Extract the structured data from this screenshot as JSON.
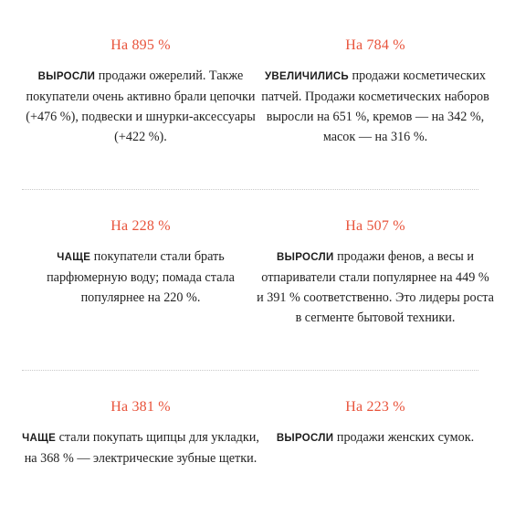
{
  "colors": {
    "accent": "#e8533b",
    "text": "#222222",
    "divider": "#c9c9c9"
  },
  "stats": [
    {
      "headline": "На 895 %",
      "keyword": "ВЫРОСЛИ",
      "text": " продажи ожерелий. Также покупатели очень активно брали цепочки (+476 %), подвески и шнурки-аксессуары (+422 %)."
    },
    {
      "headline": "На 784 %",
      "keyword": "УВЕЛИЧИЛИСЬ",
      "text": " продажи косметических патчей. Продажи косметических наборов выросли на 651 %, кремов — на 342 %, масок — на 316 %."
    },
    {
      "headline": "На 228 %",
      "keyword": "ЧАЩЕ",
      "text": " покупатели стали брать парфюмерную воду; помада стала популярнее на 220 %."
    },
    {
      "headline": "На 507 %",
      "keyword": "ВЫРОСЛИ",
      "text": " продажи фенов, а весы и отпариватели стали популярнее на 449 % и 391 % соответственно. Это лидеры роста в сегменте бытовой техники."
    },
    {
      "headline": "На 381 %",
      "keyword": "ЧАЩЕ",
      "text": " стали покупать щипцы для укладки, на 368 % — электрические зубные щетки."
    },
    {
      "headline": "На 223 %",
      "keyword": "ВЫРОСЛИ",
      "text": " продажи женских сумок."
    }
  ]
}
